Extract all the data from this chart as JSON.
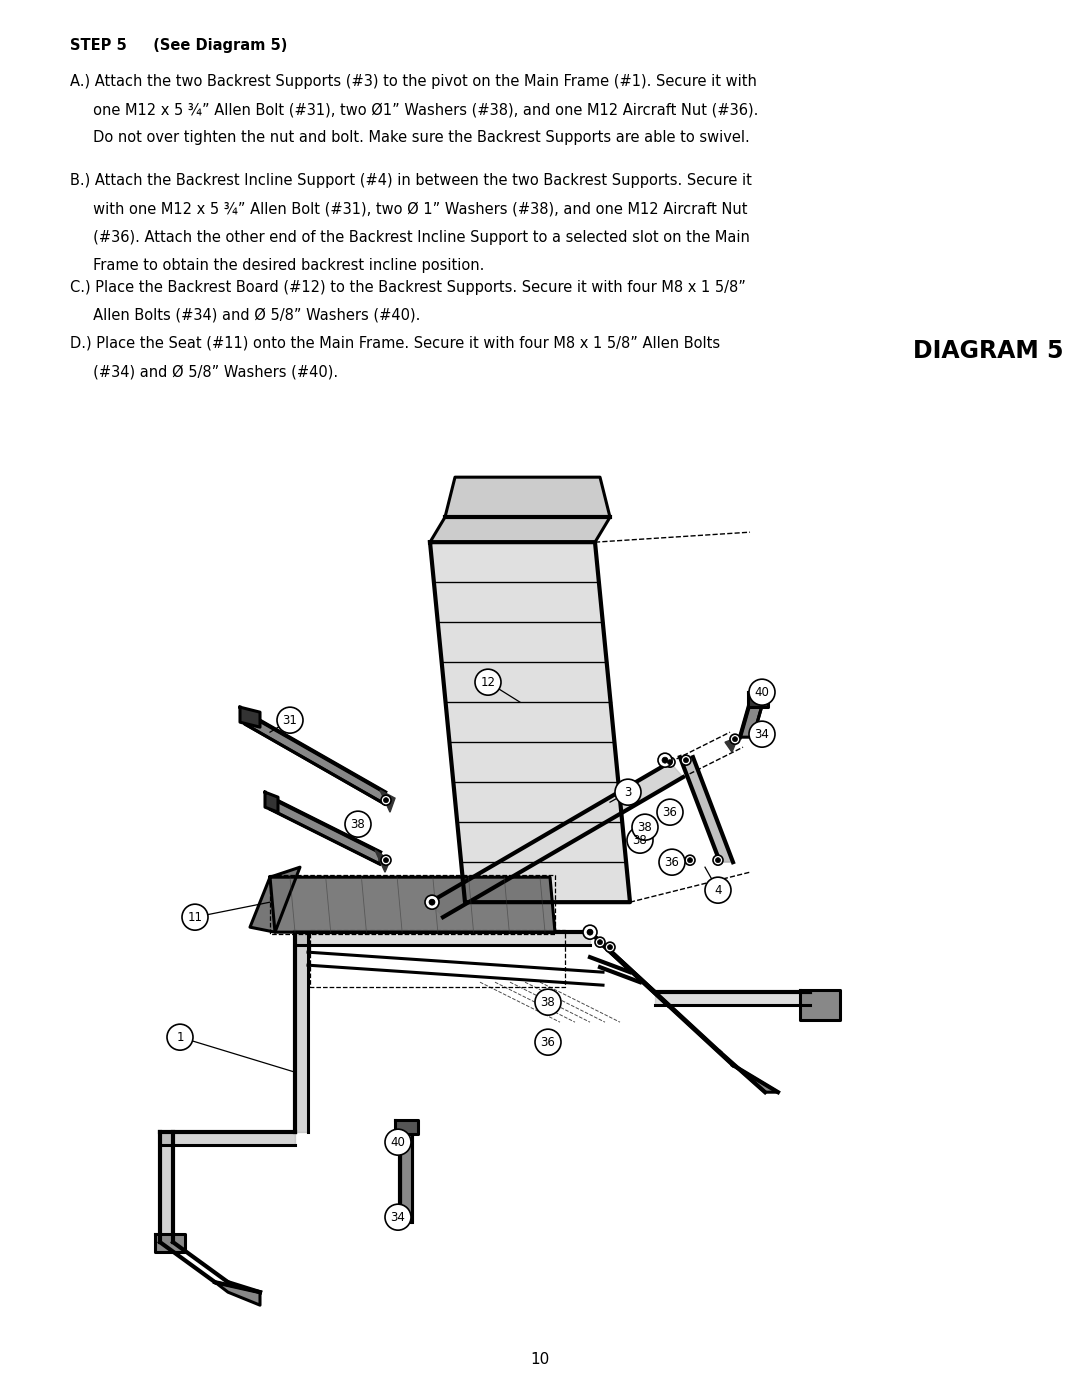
{
  "page_number": "10",
  "bg": "#ffffff",
  "text_color": "#000000",
  "step_heading_bold": "STEP 5",
  "step_heading_normal": "  (See Diagram 5)",
  "diagram_heading": "DIAGRAM 5",
  "para_A_label": "A.)",
  "para_A_line1": " Attach the two Backrest Supports (#3) to the pivot on the Main Frame (#1). Secure it with",
  "para_A_line2": "     one M12 x 5 ¾” Allen Bolt (#31), two Ø1” Washers (#38), and one M12 Aircraft Nut (#36).",
  "para_A_line3": "     Do not over tighten the nut and bolt. Make sure the Backrest Supports are able to swivel.",
  "para_B_label": "B.)",
  "para_B_line1": " Attach the Backrest Incline Support (#4) in between the two Backrest Supports. Secure it",
  "para_B_line2": "     with one M12 x 5 ¾” Allen Bolt (#31), two Ø 1” Washers (#38), and one M12 Aircraft Nut",
  "para_B_line3": "     (#36). Attach the other end of the Backrest Incline Support to a selected slot on the Main",
  "para_B_line4": "     Frame to obtain the desired backrest incline position.",
  "para_C_label": "C.)",
  "para_C_line1": " Place the Backrest Board (#12) to the Backrest Supports. Secure it with four M8 x 1 5/8”",
  "para_C_line2": "     Allen Bolts (#34) and Ø 5/8” Washers (#40).",
  "para_D_label": "D.)",
  "para_D_line1": " Place the Seat (#11) onto the Main Frame. Secure it with four M8 x 1 5/8” Allen Bolts",
  "para_D_line2": "     (#34) and Ø 5/8” Washers (#40)."
}
